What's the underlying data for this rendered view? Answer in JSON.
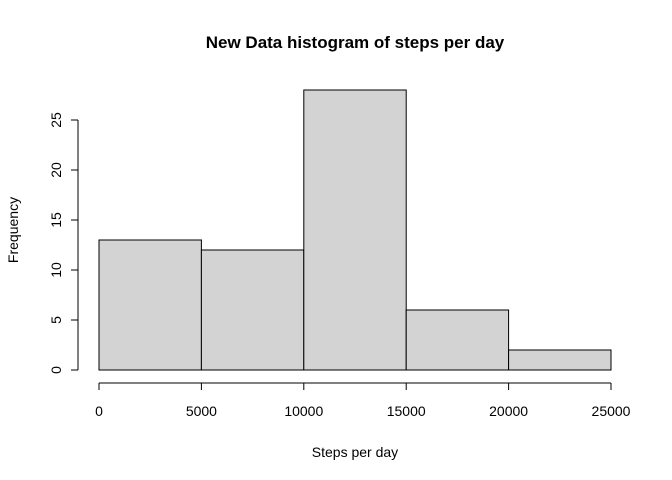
{
  "chart_data": {
    "type": "histogram",
    "title": "New Data histogram of steps per day",
    "xlabel": "Steps per day",
    "ylabel": "Frequency",
    "bins": [
      {
        "start": 0,
        "end": 5000,
        "count": 13
      },
      {
        "start": 5000,
        "end": 10000,
        "count": 12
      },
      {
        "start": 10000,
        "end": 15000,
        "count": 28
      },
      {
        "start": 15000,
        "end": 20000,
        "count": 6
      },
      {
        "start": 20000,
        "end": 25000,
        "count": 2
      }
    ],
    "xlim": [
      0,
      25000
    ],
    "ylim": [
      0,
      28
    ],
    "xticks": [
      0,
      5000,
      10000,
      15000,
      20000,
      25000
    ],
    "yticks": [
      0,
      5,
      10,
      15,
      20,
      25
    ],
    "bar_fill": "#d3d3d3",
    "bar_stroke": "#000000",
    "grid": false,
    "legend": "none"
  }
}
